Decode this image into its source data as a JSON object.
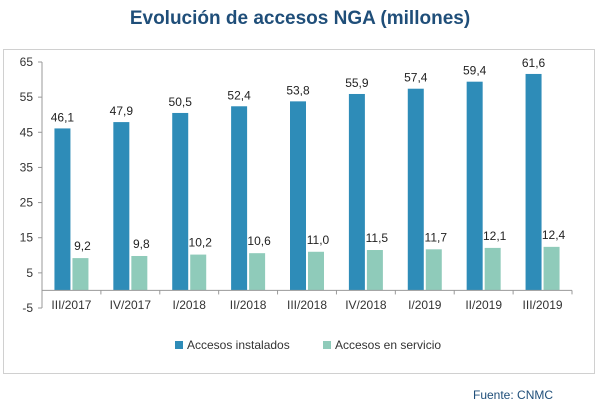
{
  "title": "Evolución de accesos NGA (millones)",
  "source": "Fuente: CNMC",
  "chart_data": {
    "type": "bar",
    "title": "Evolución de accesos NGA (millones)",
    "xlabel": "",
    "ylabel": "",
    "categories": [
      "III/2017",
      "IV/2017",
      "I/2018",
      "II/2018",
      "III/2018",
      "IV/2018",
      "I/2019",
      "II/2019",
      "III/2019"
    ],
    "series": [
      {
        "name": "Accesos instalados",
        "color": "#2e8cb8",
        "values": [
          46.1,
          47.9,
          50.5,
          52.4,
          53.8,
          55.9,
          57.4,
          59.4,
          61.6
        ],
        "labels": [
          "46,1",
          "47,9",
          "50,5",
          "52,4",
          "53,8",
          "55,9",
          "57,4",
          "59,4",
          "61,6"
        ]
      },
      {
        "name": "Accesos en servicio",
        "color": "#8fcbba",
        "values": [
          9.2,
          9.8,
          10.2,
          10.6,
          11.0,
          11.5,
          11.7,
          12.1,
          12.4
        ],
        "labels": [
          "9,2",
          "9,8",
          "10,2",
          "10,6",
          "11,0",
          "11,5",
          "11,7",
          "12,1",
          "12,4"
        ]
      }
    ],
    "yticks": [
      -5,
      5,
      15,
      25,
      35,
      45,
      55,
      65
    ],
    "ylim": [
      -5,
      65
    ],
    "grid": false,
    "legend": "bottom"
  }
}
